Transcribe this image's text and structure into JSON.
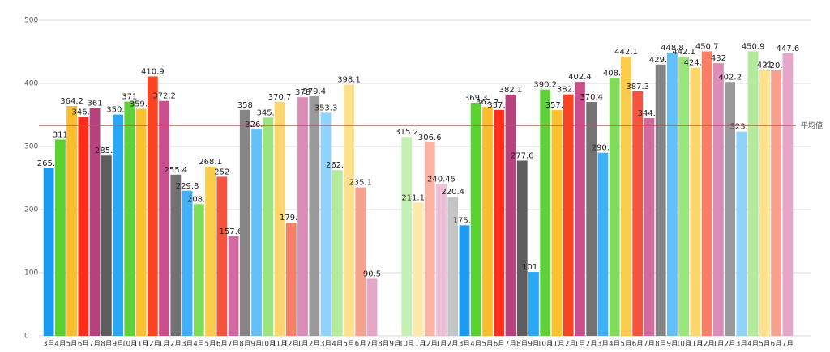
{
  "chart_data": {
    "type": "bar",
    "categories": [
      "3月",
      "4月",
      "5月",
      "6月",
      "7月",
      "8月",
      "9月",
      "10月",
      "11月",
      "12月",
      "1月",
      "2月",
      "3月",
      "4月",
      "5月",
      "6月",
      "7月",
      "8月",
      "9月",
      "10月",
      "11月",
      "12月",
      "1月",
      "2月",
      "3月",
      "4月",
      "5月",
      "6月",
      "7月",
      "8月",
      "9月",
      "10月",
      "11月",
      "12月",
      "1月",
      "2月",
      "3月",
      "4月",
      "5月",
      "6月",
      "7月",
      "8月",
      "9月",
      "10月",
      "11月",
      "12月",
      "1月",
      "2月",
      "3月",
      "4月",
      "5月",
      "6月",
      "7月",
      "8月",
      "9月",
      "10月",
      "11月",
      "12月",
      "1月",
      "2月",
      "3月",
      "4月",
      "5月",
      "6月",
      "7月"
    ],
    "values": [
      265.5,
      311,
      364.2,
      346.9,
      361,
      285.6,
      350.6,
      371,
      359.7,
      410.9,
      372.2,
      255.4,
      229.8,
      208.6,
      268.1,
      252,
      157.65,
      358,
      326.8,
      345.8,
      370.7,
      179.5,
      378,
      379.4,
      353.3,
      262.6,
      398.1,
      235.1,
      90.5,
      null,
      null,
      315.2,
      211.195,
      306.6,
      240.45,
      220.4,
      175.2,
      369.3,
      362.7,
      357.9,
      382.1,
      277.6,
      101.2,
      390.2,
      357.6,
      382.5,
      402.4,
      370.4,
      290.2,
      408.6,
      442.1,
      387.3,
      344.9,
      429.8,
      448.8,
      442.1,
      424.8,
      450.7,
      432,
      402.2,
      323.5,
      450.9,
      421,
      420.6,
      447.6
    ],
    "colors": [
      "#1a9bf0",
      "#5ad12e",
      "#fbbd2b",
      "#fc2d1a",
      "#b8427e",
      "#5d5d5d",
      "#29a8f5",
      "#60d13a",
      "#f9c22e",
      "#fb4522",
      "#c84f8b",
      "#727272",
      "#3fb1f9",
      "#7edc5a",
      "#fbcb4c",
      "#f7543f",
      "#d26aa0",
      "#858585",
      "#62c1fb",
      "#9ae57d",
      "#fcd66e",
      "#f97e66",
      "#dc8cb9",
      "#9a9a9a",
      "#8ed3fb",
      "#b3ea9c",
      "#fde18d",
      "#f9a08e",
      "#e6a6ca",
      null,
      null,
      "#c5f0b4",
      "#fde9ac",
      "#f9b4a6",
      "#edc0d9",
      "#c4c4c4",
      "#1a9bf0",
      "#5ad12e",
      "#fbbd2b",
      "#fc2d1a",
      "#b8427e",
      "#5d5d5d",
      "#29a8f5",
      "#60d13a",
      "#f9c22e",
      "#fb4522",
      "#c84f8b",
      "#727272",
      "#3fb1f9",
      "#7edc5a",
      "#fbcb4c",
      "#f7543f",
      "#d26aa0",
      "#858585",
      "#62c1fb",
      "#9ae57d",
      "#fcd66e",
      "#f97e66",
      "#dc8cb9",
      "#9a9a9a",
      "#8ed3fb",
      "#b3ea9c",
      "#fde18d",
      "#f9a08e",
      "#e6a6ca"
    ],
    "ylim": [
      0,
      500
    ],
    "yticks": [
      0,
      100,
      200,
      300,
      400,
      500
    ],
    "grid": true,
    "reference_line": {
      "value": 333,
      "label": "平均値",
      "color": "#f0452a"
    }
  }
}
